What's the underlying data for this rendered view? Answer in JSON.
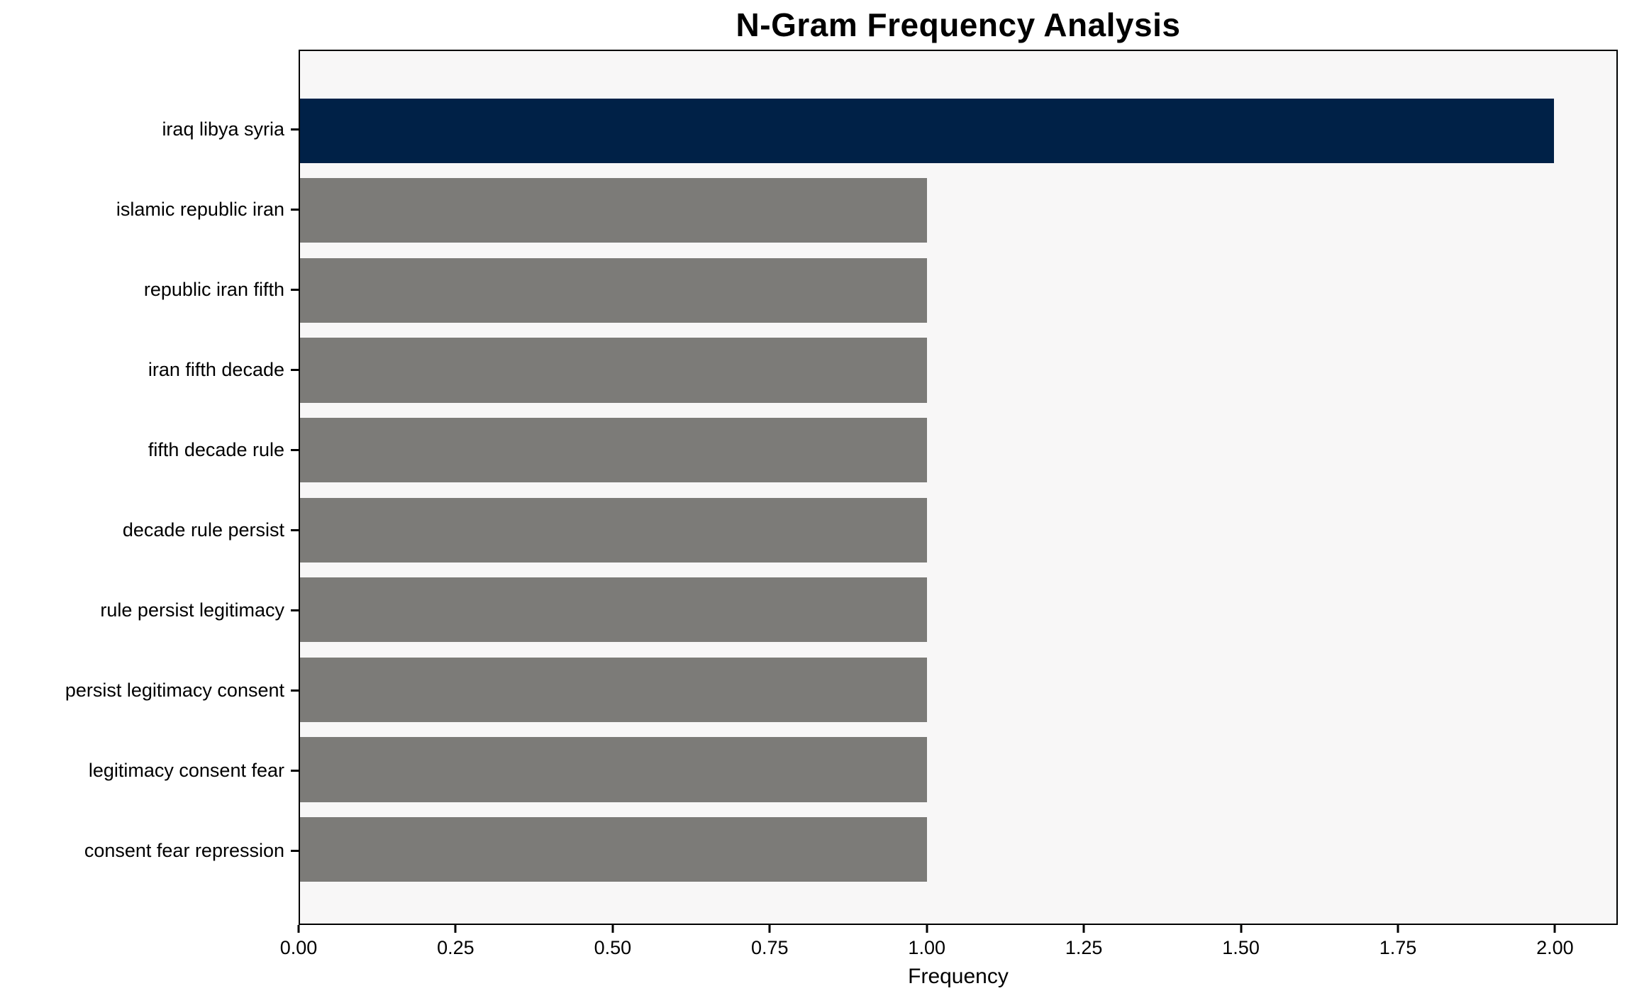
{
  "chart_data": {
    "type": "bar",
    "orientation": "horizontal",
    "title": "N-Gram Frequency Analysis",
    "xlabel": "Frequency",
    "ylabel": "",
    "categories": [
      "iraq libya syria",
      "islamic republic iran",
      "republic iran fifth",
      "iran fifth decade",
      "fifth decade rule",
      "decade rule persist",
      "rule persist legitimacy",
      "persist legitimacy consent",
      "legitimacy consent fear",
      "consent fear repression"
    ],
    "values": [
      2,
      1,
      1,
      1,
      1,
      1,
      1,
      1,
      1,
      1
    ],
    "bar_colors": [
      "#002147",
      "#7c7b78",
      "#7c7b78",
      "#7c7b78",
      "#7c7b78",
      "#7c7b78",
      "#7c7b78",
      "#7c7b78",
      "#7c7b78",
      "#7c7b78"
    ],
    "x_ticks": [
      {
        "value": 0,
        "label": "0.00"
      },
      {
        "value": 0.25,
        "label": "0.25"
      },
      {
        "value": 0.5,
        "label": "0.50"
      },
      {
        "value": 0.75,
        "label": "0.75"
      },
      {
        "value": 1,
        "label": "1.00"
      },
      {
        "value": 1.25,
        "label": "1.25"
      },
      {
        "value": 1.5,
        "label": "1.50"
      },
      {
        "value": 1.75,
        "label": "1.75"
      },
      {
        "value": 2,
        "label": "2.00"
      }
    ],
    "xlim": [
      0,
      2.1
    ],
    "grid": false,
    "legend": false,
    "highlight_color": "#002147",
    "base_bar_color": "#7c7b78",
    "plot_background": "#f8f7f7",
    "figure_background": "#ffffff",
    "spine_color": "#000000"
  }
}
